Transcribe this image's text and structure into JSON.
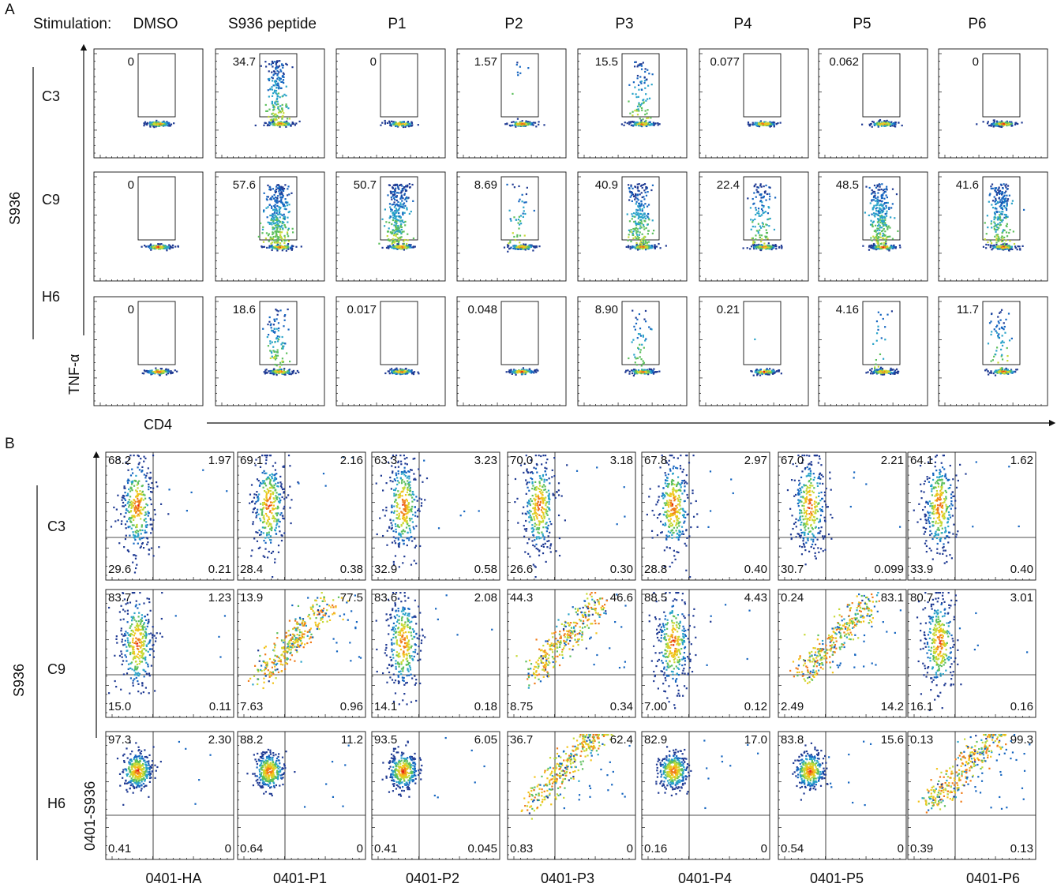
{
  "figure": {
    "panel_a": "A",
    "panel_b": "B",
    "stimulation_label": "Stimulation:",
    "group_label_a": "S936",
    "group_label_b": "S936"
  },
  "colors": {
    "density": [
      "#1f3a93",
      "#1565c0",
      "#29a3c9",
      "#5cbf5c",
      "#c6d936",
      "#f2c31a",
      "#f07b18",
      "#e02018"
    ]
  },
  "chart_data": [
    {
      "type": "scatter",
      "subtype": "flow-cytometry-density",
      "panel": "A",
      "xlabel": "CD4",
      "ylabel": "TNF-α",
      "columns": [
        "DMSO",
        "S936 peptide",
        "P1",
        "P2",
        "P3",
        "P4",
        "P5",
        "P6"
      ],
      "rows": [
        "C3",
        "C9",
        "H6"
      ],
      "gate_percent": [
        [
          "0",
          "34.7",
          "0",
          "1.57",
          "15.5",
          "0.077",
          "0.062",
          "0"
        ],
        [
          "0",
          "57.6",
          "50.7",
          "8.69",
          "40.9",
          "22.4",
          "48.5",
          "41.6"
        ],
        [
          "0",
          "18.6",
          "0.017",
          "0.048",
          "8.90",
          "0.21",
          "4.16",
          "11.7"
        ]
      ]
    },
    {
      "type": "scatter",
      "subtype": "flow-cytometry-quadrant",
      "panel": "B",
      "ylabel": "0401-S936",
      "columns": [
        "0401-HA",
        "0401-P1",
        "0401-P2",
        "0401-P3",
        "0401-P4",
        "0401-P5",
        "0401-P6"
      ],
      "rows": [
        "C3",
        "C9",
        "H6"
      ],
      "quadrants": [
        [
          {
            "ul": "68.2",
            "ur": "1.97",
            "ll": "29.6",
            "lr": "0.21"
          },
          {
            "ul": "69.1",
            "ur": "2.16",
            "ll": "28.4",
            "lr": "0.38"
          },
          {
            "ul": "63.3",
            "ur": "3.23",
            "ll": "32.9",
            "lr": "0.58"
          },
          {
            "ul": "70.0",
            "ur": "3.18",
            "ll": "26.6",
            "lr": "0.30"
          },
          {
            "ul": "67.8",
            "ur": "2.97",
            "ll": "28.8",
            "lr": "0.40"
          },
          {
            "ul": "67.0",
            "ur": "2.21",
            "ll": "30.7",
            "lr": "0.099"
          },
          {
            "ul": "64.1",
            "ur": "1.62",
            "ll": "33.9",
            "lr": "0.40"
          }
        ],
        [
          {
            "ul": "83.7",
            "ur": "1.23",
            "ll": "15.0",
            "lr": "0.11"
          },
          {
            "ul": "13.9",
            "ur": "77.5",
            "ll": "7.63",
            "lr": "0.96"
          },
          {
            "ul": "83.6",
            "ur": "2.08",
            "ll": "14.1",
            "lr": "0.18"
          },
          {
            "ul": "44.3",
            "ur": "46.6",
            "ll": "8.75",
            "lr": "0.34"
          },
          {
            "ul": "88.5",
            "ur": "4.43",
            "ll": "7.00",
            "lr": "0.12"
          },
          {
            "ul": "0.24",
            "ur": "83.1",
            "ll": "2.49",
            "lr": "14.2"
          },
          {
            "ul": "80.7",
            "ur": "3.01",
            "ll": "16.1",
            "lr": "0.16"
          }
        ],
        [
          {
            "ul": "97.3",
            "ur": "2.30",
            "ll": "0.41",
            "lr": "0"
          },
          {
            "ul": "88.2",
            "ur": "11.2",
            "ll": "0.64",
            "lr": "0"
          },
          {
            "ul": "93.5",
            "ur": "6.05",
            "ll": "0.41",
            "lr": "0.045"
          },
          {
            "ul": "36.7",
            "ur": "62.4",
            "ll": "0.83",
            "lr": "0"
          },
          {
            "ul": "82.9",
            "ur": "17.0",
            "ll": "0.16",
            "lr": "0"
          },
          {
            "ul": "83.8",
            "ur": "15.6",
            "ll": "0.54",
            "lr": "0"
          },
          {
            "ul": "0.13",
            "ur": "99.3",
            "ll": "0.39",
            "lr": "0.13"
          }
        ]
      ]
    }
  ]
}
